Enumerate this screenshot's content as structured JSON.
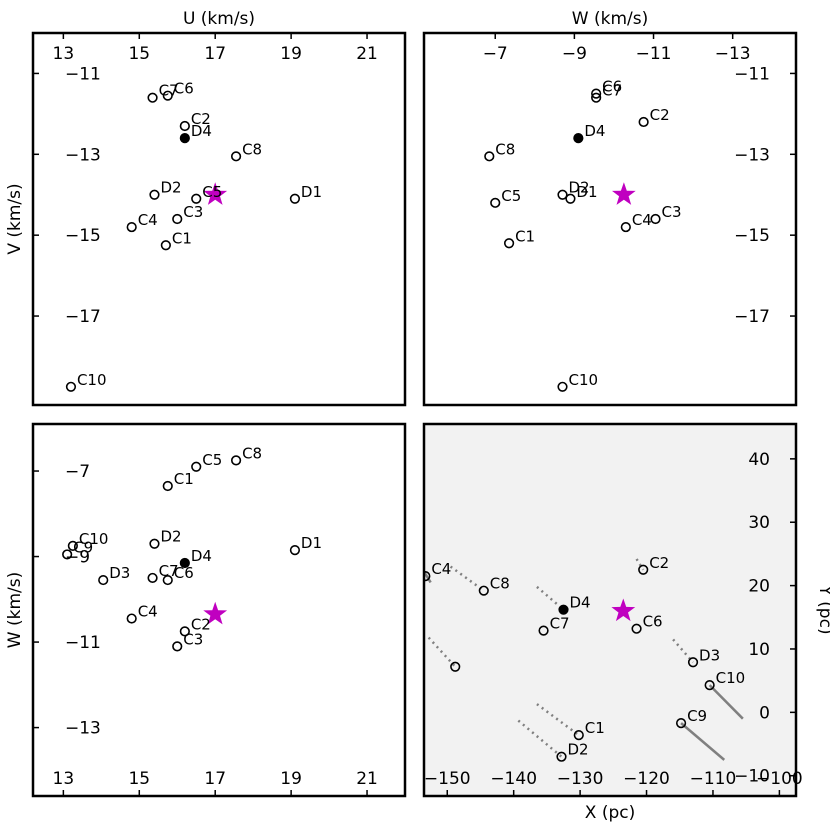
{
  "chart_data": [
    {
      "id": "uv",
      "type": "scatter",
      "xlabel": "U (km/s)",
      "ylabel": "V (km/s)",
      "xlim": [
        12.2,
        22.0
      ],
      "ylim": [
        -19.2,
        -10.0
      ],
      "xticks": [
        13,
        15,
        17,
        19,
        21
      ],
      "yticks": [
        -11,
        -13,
        -15,
        -17
      ],
      "x_axis_side": "top",
      "y_axis_side": "left",
      "background": "#ffffff",
      "points": [
        {
          "label": "C7",
          "x": 15.35,
          "y": -11.6,
          "filled": false
        },
        {
          "label": "C6",
          "x": 15.75,
          "y": -11.55,
          "filled": false
        },
        {
          "label": "C2",
          "x": 16.2,
          "y": -12.3,
          "filled": false
        },
        {
          "label": "D4",
          "x": 16.2,
          "y": -12.6,
          "filled": true
        },
        {
          "label": "C8",
          "x": 17.55,
          "y": -13.05,
          "filled": false
        },
        {
          "label": "D2",
          "x": 15.4,
          "y": -14.0,
          "filled": false
        },
        {
          "label": "C5",
          "x": 16.5,
          "y": -14.1,
          "filled": false
        },
        {
          "label": "D1",
          "x": 19.1,
          "y": -14.1,
          "filled": false
        },
        {
          "label": "C3",
          "x": 16.0,
          "y": -14.6,
          "filled": false
        },
        {
          "label": "C4",
          "x": 14.8,
          "y": -14.8,
          "filled": false
        },
        {
          "label": "C1",
          "x": 15.7,
          "y": -15.25,
          "filled": false
        },
        {
          "label": "C10",
          "x": 13.2,
          "y": -18.75,
          "filled": false
        }
      ],
      "star": {
        "x": 17.0,
        "y": -14.0,
        "color": "#c000c0"
      }
    },
    {
      "id": "wv",
      "type": "scatter",
      "xlabel": "W (km/s)",
      "ylabel": "",
      "xlim": [
        -5.2,
        -14.6
      ],
      "ylim": [
        -19.2,
        -10.0
      ],
      "xticks": [
        -7,
        -9,
        -11,
        -13
      ],
      "yticks": [
        -11,
        -13,
        -15,
        -17
      ],
      "x_axis_side": "top",
      "y_axis_side": "right",
      "background": "#ffffff",
      "points": [
        {
          "label": "C6",
          "x": -9.55,
          "y": -11.5,
          "filled": false
        },
        {
          "label": "C7",
          "x": -9.55,
          "y": -11.6,
          "filled": false
        },
        {
          "label": "C2",
          "x": -10.75,
          "y": -12.2,
          "filled": false
        },
        {
          "label": "D4",
          "x": -9.1,
          "y": -12.6,
          "filled": true
        },
        {
          "label": "C8",
          "x": -6.85,
          "y": -13.05,
          "filled": false
        },
        {
          "label": "D2",
          "x": -8.7,
          "y": -14.0,
          "filled": false
        },
        {
          "label": "D1",
          "x": -8.9,
          "y": -14.1,
          "filled": false
        },
        {
          "label": "C5",
          "x": -7.0,
          "y": -14.2,
          "filled": false
        },
        {
          "label": "C3",
          "x": -11.05,
          "y": -14.6,
          "filled": false
        },
        {
          "label": "C4",
          "x": -10.3,
          "y": -14.8,
          "filled": false
        },
        {
          "label": "C1",
          "x": -7.35,
          "y": -15.2,
          "filled": false
        },
        {
          "label": "C10",
          "x": -8.7,
          "y": -18.75,
          "filled": false
        }
      ],
      "star": {
        "x": -10.25,
        "y": -14.0,
        "color": "#c000c0"
      }
    },
    {
      "id": "uw",
      "type": "scatter",
      "xlabel": "",
      "ylabel": "W (km/s)",
      "xlim": [
        12.2,
        22.0
      ],
      "ylim": [
        -14.6,
        -5.9
      ],
      "xticks": [
        13,
        15,
        17,
        19,
        21
      ],
      "yticks": [
        -7,
        -9,
        -11,
        -13
      ],
      "x_axis_side": "bottom",
      "y_axis_side": "left",
      "background": "#ffffff",
      "points": [
        {
          "label": "C5",
          "x": 16.5,
          "y": -6.9,
          "filled": false
        },
        {
          "label": "C8",
          "x": 17.55,
          "y": -6.75,
          "filled": false
        },
        {
          "label": "C1",
          "x": 15.75,
          "y": -7.35,
          "filled": false
        },
        {
          "label": "D2",
          "x": 15.4,
          "y": -8.7,
          "filled": false
        },
        {
          "label": "C10",
          "x": 13.25,
          "y": -8.75,
          "filled": false
        },
        {
          "label": "C9",
          "x": 13.1,
          "y": -8.95,
          "filled": false
        },
        {
          "label": "D1",
          "x": 19.1,
          "y": -8.85,
          "filled": false
        },
        {
          "label": "D4",
          "x": 16.2,
          "y": -9.15,
          "filled": true
        },
        {
          "label": "D3",
          "x": 14.05,
          "y": -9.55,
          "filled": false
        },
        {
          "label": "C7",
          "x": 15.35,
          "y": -9.5,
          "filled": false
        },
        {
          "label": "C6",
          "x": 15.75,
          "y": -9.55,
          "filled": false
        },
        {
          "label": "C4",
          "x": 14.8,
          "y": -10.45,
          "filled": false
        },
        {
          "label": "C2",
          "x": 16.2,
          "y": -10.75,
          "filled": false
        },
        {
          "label": "C3",
          "x": 16.0,
          "y": -11.1,
          "filled": false
        }
      ],
      "star": {
        "x": 17.0,
        "y": -10.35,
        "color": "#c000c0"
      }
    },
    {
      "id": "xy",
      "type": "scatter",
      "xlabel": "X (pc)",
      "ylabel": "Y (pc)",
      "xlim": [
        -153.5,
        -97.5
      ],
      "ylim": [
        -13.2,
        45.5
      ],
      "xticks": [
        -150,
        -140,
        -130,
        -120,
        -110,
        -100
      ],
      "yticks": [
        40,
        30,
        20,
        10,
        0,
        -10
      ],
      "x_axis_side": "bottom",
      "y_axis_side": "right",
      "background": "#f2f2f2",
      "points": [
        {
          "label": "C2",
          "x": -120.5,
          "y": 22.5,
          "filled": false
        },
        {
          "label": "C8",
          "x": -144.5,
          "y": 19.2,
          "filled": false
        },
        {
          "label": "D4",
          "x": -132.5,
          "y": 16.2,
          "filled": true
        },
        {
          "label": "C7",
          "x": -135.5,
          "y": 12.9,
          "filled": false
        },
        {
          "label": "C6",
          "x": -121.5,
          "y": 13.2,
          "filled": false
        },
        {
          "label": "D3",
          "x": -113.0,
          "y": 7.9,
          "filled": false
        },
        {
          "label": "C10",
          "x": -110.5,
          "y": 4.3,
          "filled": false
        },
        {
          "label": "",
          "x": -148.8,
          "y": 7.2,
          "filled": false
        },
        {
          "label": "C9",
          "x": -114.8,
          "y": -1.7,
          "filled": false
        },
        {
          "label": "C1",
          "x": -130.2,
          "y": -3.6,
          "filled": false
        },
        {
          "label": "D2",
          "x": -132.8,
          "y": -7.0,
          "filled": false
        },
        {
          "label": "C4",
          "x": -153.3,
          "y": 21.5,
          "filled": false
        }
      ],
      "star": {
        "x": -123.5,
        "y": 16.0,
        "color": "#c000c0"
      },
      "dotted_lines": [
        [
          [
            -121.5,
            24.2
          ],
          [
            -120.5,
            22.5
          ]
        ],
        [
          [
            -149.5,
            23.0
          ],
          [
            -144.5,
            19.2
          ]
        ],
        [
          [
            -136.5,
            19.8
          ],
          [
            -132.5,
            16.2
          ]
        ],
        [
          [
            -116.0,
            11.5
          ],
          [
            -113.0,
            7.9
          ]
        ],
        [
          [
            -152.8,
            11.8
          ],
          [
            -148.8,
            7.2
          ]
        ],
        [
          [
            -136.5,
            1.3
          ],
          [
            -130.2,
            -3.6
          ]
        ],
        [
          [
            -139.3,
            -1.3
          ],
          [
            -132.8,
            -7.0
          ]
        ]
      ],
      "solid_lines": [
        [
          [
            -153.5,
            22.2
          ],
          [
            -152.5,
            20.5
          ]
        ],
        [
          [
            -110.5,
            4.3
          ],
          [
            -105.5,
            -1.0
          ]
        ],
        [
          [
            -114.8,
            -1.7
          ],
          [
            -108.3,
            -7.5
          ]
        ]
      ]
    }
  ]
}
